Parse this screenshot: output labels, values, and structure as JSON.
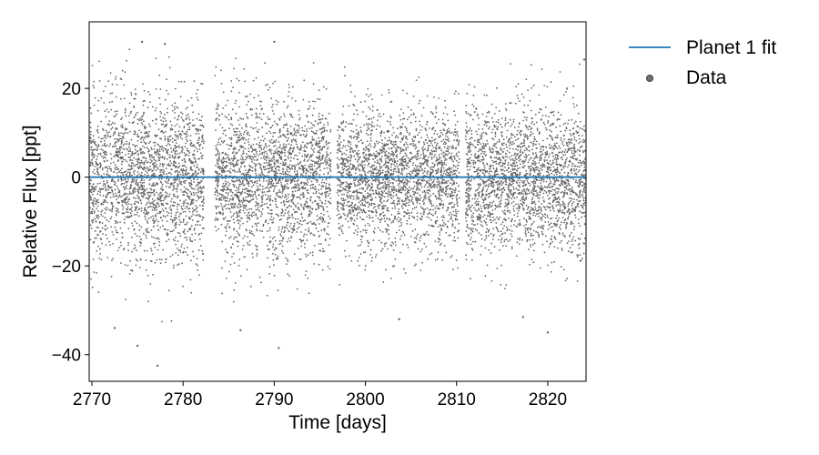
{
  "chart_data": {
    "type": "scatter",
    "title": "",
    "xlabel": "Time [days]",
    "ylabel": "Relative Flux [ppt]",
    "xlim": [
      2769.7,
      2824.2
    ],
    "ylim": [
      -46,
      35
    ],
    "xticks": [
      2770,
      2780,
      2790,
      2800,
      2810,
      2820
    ],
    "yticks": [
      -40,
      -20,
      0,
      20
    ],
    "grid": false,
    "legend_position": "outside-right-top",
    "series": [
      {
        "name": "Planet 1 fit",
        "kind": "line",
        "color": "#1f77b4",
        "x": [
          2769.7,
          2824.2
        ],
        "y": [
          0,
          0
        ]
      },
      {
        "name": "Data",
        "kind": "scatter",
        "color": "#000000",
        "alpha": 0.6,
        "note": "dense cloud of ~1 point per 0.01 day, std ~8 ppt",
        "segments": [
          {
            "x_start": 2769.8,
            "x_end": 2782.3,
            "mean": 0,
            "std": 9.0
          },
          {
            "x_start": 2783.5,
            "x_end": 2796.2,
            "mean": 0,
            "std": 8.5
          },
          {
            "x_start": 2796.9,
            "x_end": 2810.3,
            "mean": 0,
            "std": 7.5
          },
          {
            "x_start": 2811.0,
            "x_end": 2824.2,
            "mean": 0,
            "std": 8.0
          }
        ],
        "sample_points": [
          {
            "x": 2775.5,
            "y": 30.5
          },
          {
            "x": 2778.0,
            "y": 30.0
          },
          {
            "x": 2790.0,
            "y": 30.5
          },
          {
            "x": 2777.2,
            "y": -42.5
          },
          {
            "x": 2775.0,
            "y": -38.0
          },
          {
            "x": 2790.5,
            "y": -38.5
          },
          {
            "x": 2803.7,
            "y": -32.0
          },
          {
            "x": 2817.3,
            "y": -31.5
          },
          {
            "x": 2820.0,
            "y": -35.0
          },
          {
            "x": 2786.3,
            "y": -34.5
          },
          {
            "x": 2824.0,
            "y": 26.5
          },
          {
            "x": 2772.5,
            "y": -34.0
          }
        ]
      }
    ]
  }
}
